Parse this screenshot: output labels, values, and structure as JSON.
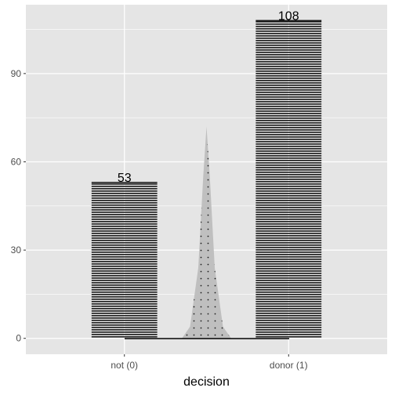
{
  "chart_data": {
    "type": "bar",
    "categories": [
      "not (0)",
      "donor (1)"
    ],
    "values": [
      53,
      108
    ],
    "data_labels": [
      "53",
      "108"
    ],
    "xlabel": "decision",
    "ylabel": "",
    "yticks": [
      0,
      30,
      60,
      90
    ],
    "ytick_labels": [
      "0",
      "30",
      "60",
      "90"
    ],
    "ylim": [
      -5.4,
      113.4
    ],
    "density_overlay": {
      "x": [
        1.35,
        1.4,
        1.45,
        1.48,
        1.5,
        1.52,
        1.55,
        1.6,
        1.65
      ],
      "y": [
        0,
        4,
        24,
        55,
        72,
        55,
        24,
        4,
        0
      ]
    },
    "grid": true,
    "colors": {
      "panel_background": "#e5e5e5",
      "grid": "#ffffff",
      "bar_stripe": "#1a1a1a",
      "density_fill": "#bfbfbf"
    }
  }
}
